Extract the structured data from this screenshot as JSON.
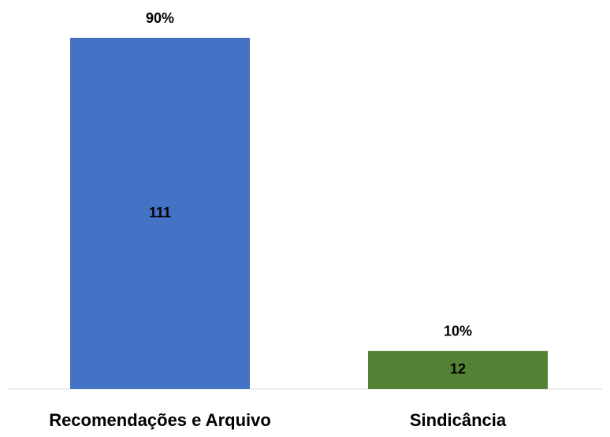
{
  "chart_data": {
    "type": "bar",
    "categories": [
      "Recomendações e Arquivo",
      "Sindicância"
    ],
    "values": [
      111,
      12
    ],
    "percent_labels": [
      "90%",
      "10%"
    ],
    "colors": [
      "#4472c4",
      "#548235"
    ]
  }
}
